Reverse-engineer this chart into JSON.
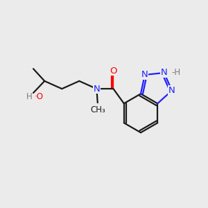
{
  "bg_color": "#ebebeb",
  "bond_color": "#1a1a1a",
  "bond_width": 1.6,
  "atom_colors": {
    "N": "#2020ff",
    "O": "#ff0000",
    "H_gray": "#7a7a7a",
    "C": "#1a1a1a"
  },
  "font_size_atom": 9.5,
  "font_size_label": 8.5,
  "figsize": [
    3.0,
    3.0
  ],
  "dpi": 100,
  "xlim": [
    0,
    10
  ],
  "ylim": [
    0,
    10
  ]
}
